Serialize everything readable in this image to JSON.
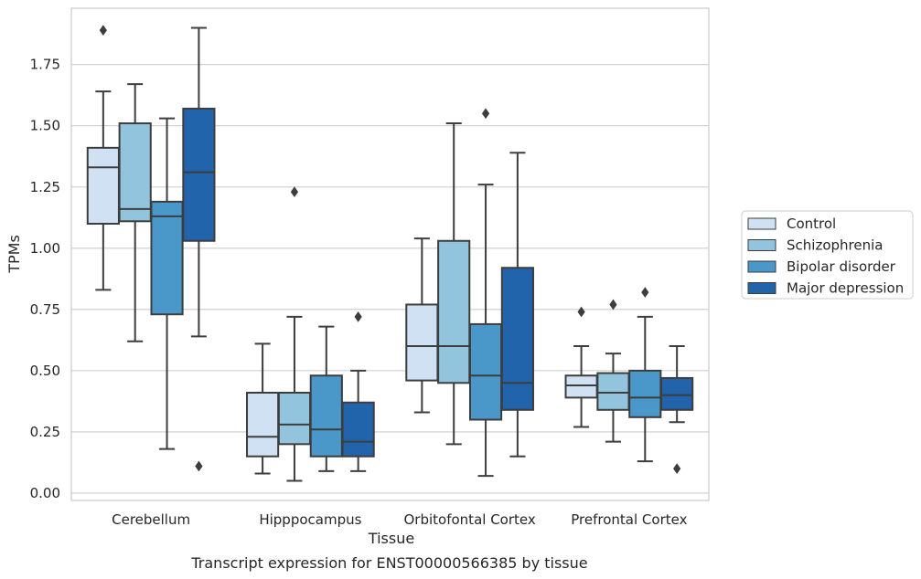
{
  "chart_data": {
    "type": "box",
    "xlabel": "Tissue",
    "ylabel": "TPMs",
    "caption": "Transcript expression for ENST00000566385 by tissue",
    "ylim": [
      -0.03,
      1.98
    ],
    "yticks": [
      "0.00",
      "0.25",
      "0.50",
      "0.75",
      "1.00",
      "1.25",
      "1.50",
      "1.75"
    ],
    "grid": "horizontal",
    "legend_position": "right",
    "categories": [
      "Cerebellum",
      "Hipppocampus",
      "Orbitofontal Cortex",
      "Prefrontal Cortex"
    ],
    "series": [
      {
        "name": "Control",
        "color": "#cfe1f2",
        "boxes": [
          {
            "whislo": 0.83,
            "q1": 1.1,
            "med": 1.33,
            "q3": 1.41,
            "whishi": 1.64,
            "fliers": [
              1.89
            ]
          },
          {
            "whislo": 0.08,
            "q1": 0.15,
            "med": 0.23,
            "q3": 0.41,
            "whishi": 0.61,
            "fliers": []
          },
          {
            "whislo": 0.33,
            "q1": 0.46,
            "med": 0.6,
            "q3": 0.77,
            "whishi": 1.04,
            "fliers": []
          },
          {
            "whislo": 0.27,
            "q1": 0.39,
            "med": 0.44,
            "q3": 0.48,
            "whishi": 0.6,
            "fliers": [
              0.74
            ]
          }
        ]
      },
      {
        "name": "Schizophrenia",
        "color": "#93c4de",
        "boxes": [
          {
            "whislo": 0.62,
            "q1": 1.11,
            "med": 1.16,
            "q3": 1.51,
            "whishi": 1.67,
            "fliers": []
          },
          {
            "whislo": 0.05,
            "q1": 0.2,
            "med": 0.28,
            "q3": 0.41,
            "whishi": 0.72,
            "fliers": [
              1.23
            ]
          },
          {
            "whislo": 0.2,
            "q1": 0.45,
            "med": 0.6,
            "q3": 1.03,
            "whishi": 1.51,
            "fliers": []
          },
          {
            "whislo": 0.21,
            "q1": 0.34,
            "med": 0.41,
            "q3": 0.49,
            "whishi": 0.57,
            "fliers": [
              0.77
            ]
          }
        ]
      },
      {
        "name": "Bipolar disorder",
        "color": "#4a98c9",
        "boxes": [
          {
            "whislo": 0.18,
            "q1": 0.73,
            "med": 1.13,
            "q3": 1.19,
            "whishi": 1.53,
            "fliers": []
          },
          {
            "whislo": 0.09,
            "q1": 0.15,
            "med": 0.26,
            "q3": 0.48,
            "whishi": 0.68,
            "fliers": []
          },
          {
            "whislo": 0.07,
            "q1": 0.3,
            "med": 0.48,
            "q3": 0.69,
            "whishi": 1.26,
            "fliers": [
              1.55
            ]
          },
          {
            "whislo": 0.13,
            "q1": 0.31,
            "med": 0.39,
            "q3": 0.5,
            "whishi": 0.72,
            "fliers": [
              0.82
            ]
          }
        ]
      },
      {
        "name": "Major depression",
        "color": "#2164ab",
        "boxes": [
          {
            "whislo": 0.64,
            "q1": 1.03,
            "med": 1.31,
            "q3": 1.57,
            "whishi": 1.9,
            "fliers": [
              0.11
            ]
          },
          {
            "whislo": 0.09,
            "q1": 0.15,
            "med": 0.21,
            "q3": 0.37,
            "whishi": 0.5,
            "fliers": [
              0.72
            ]
          },
          {
            "whislo": 0.15,
            "q1": 0.34,
            "med": 0.45,
            "q3": 0.92,
            "whishi": 1.39,
            "fliers": []
          },
          {
            "whislo": 0.29,
            "q1": 0.34,
            "med": 0.4,
            "q3": 0.47,
            "whishi": 0.6,
            "fliers": [
              0.1
            ]
          }
        ]
      }
    ]
  }
}
